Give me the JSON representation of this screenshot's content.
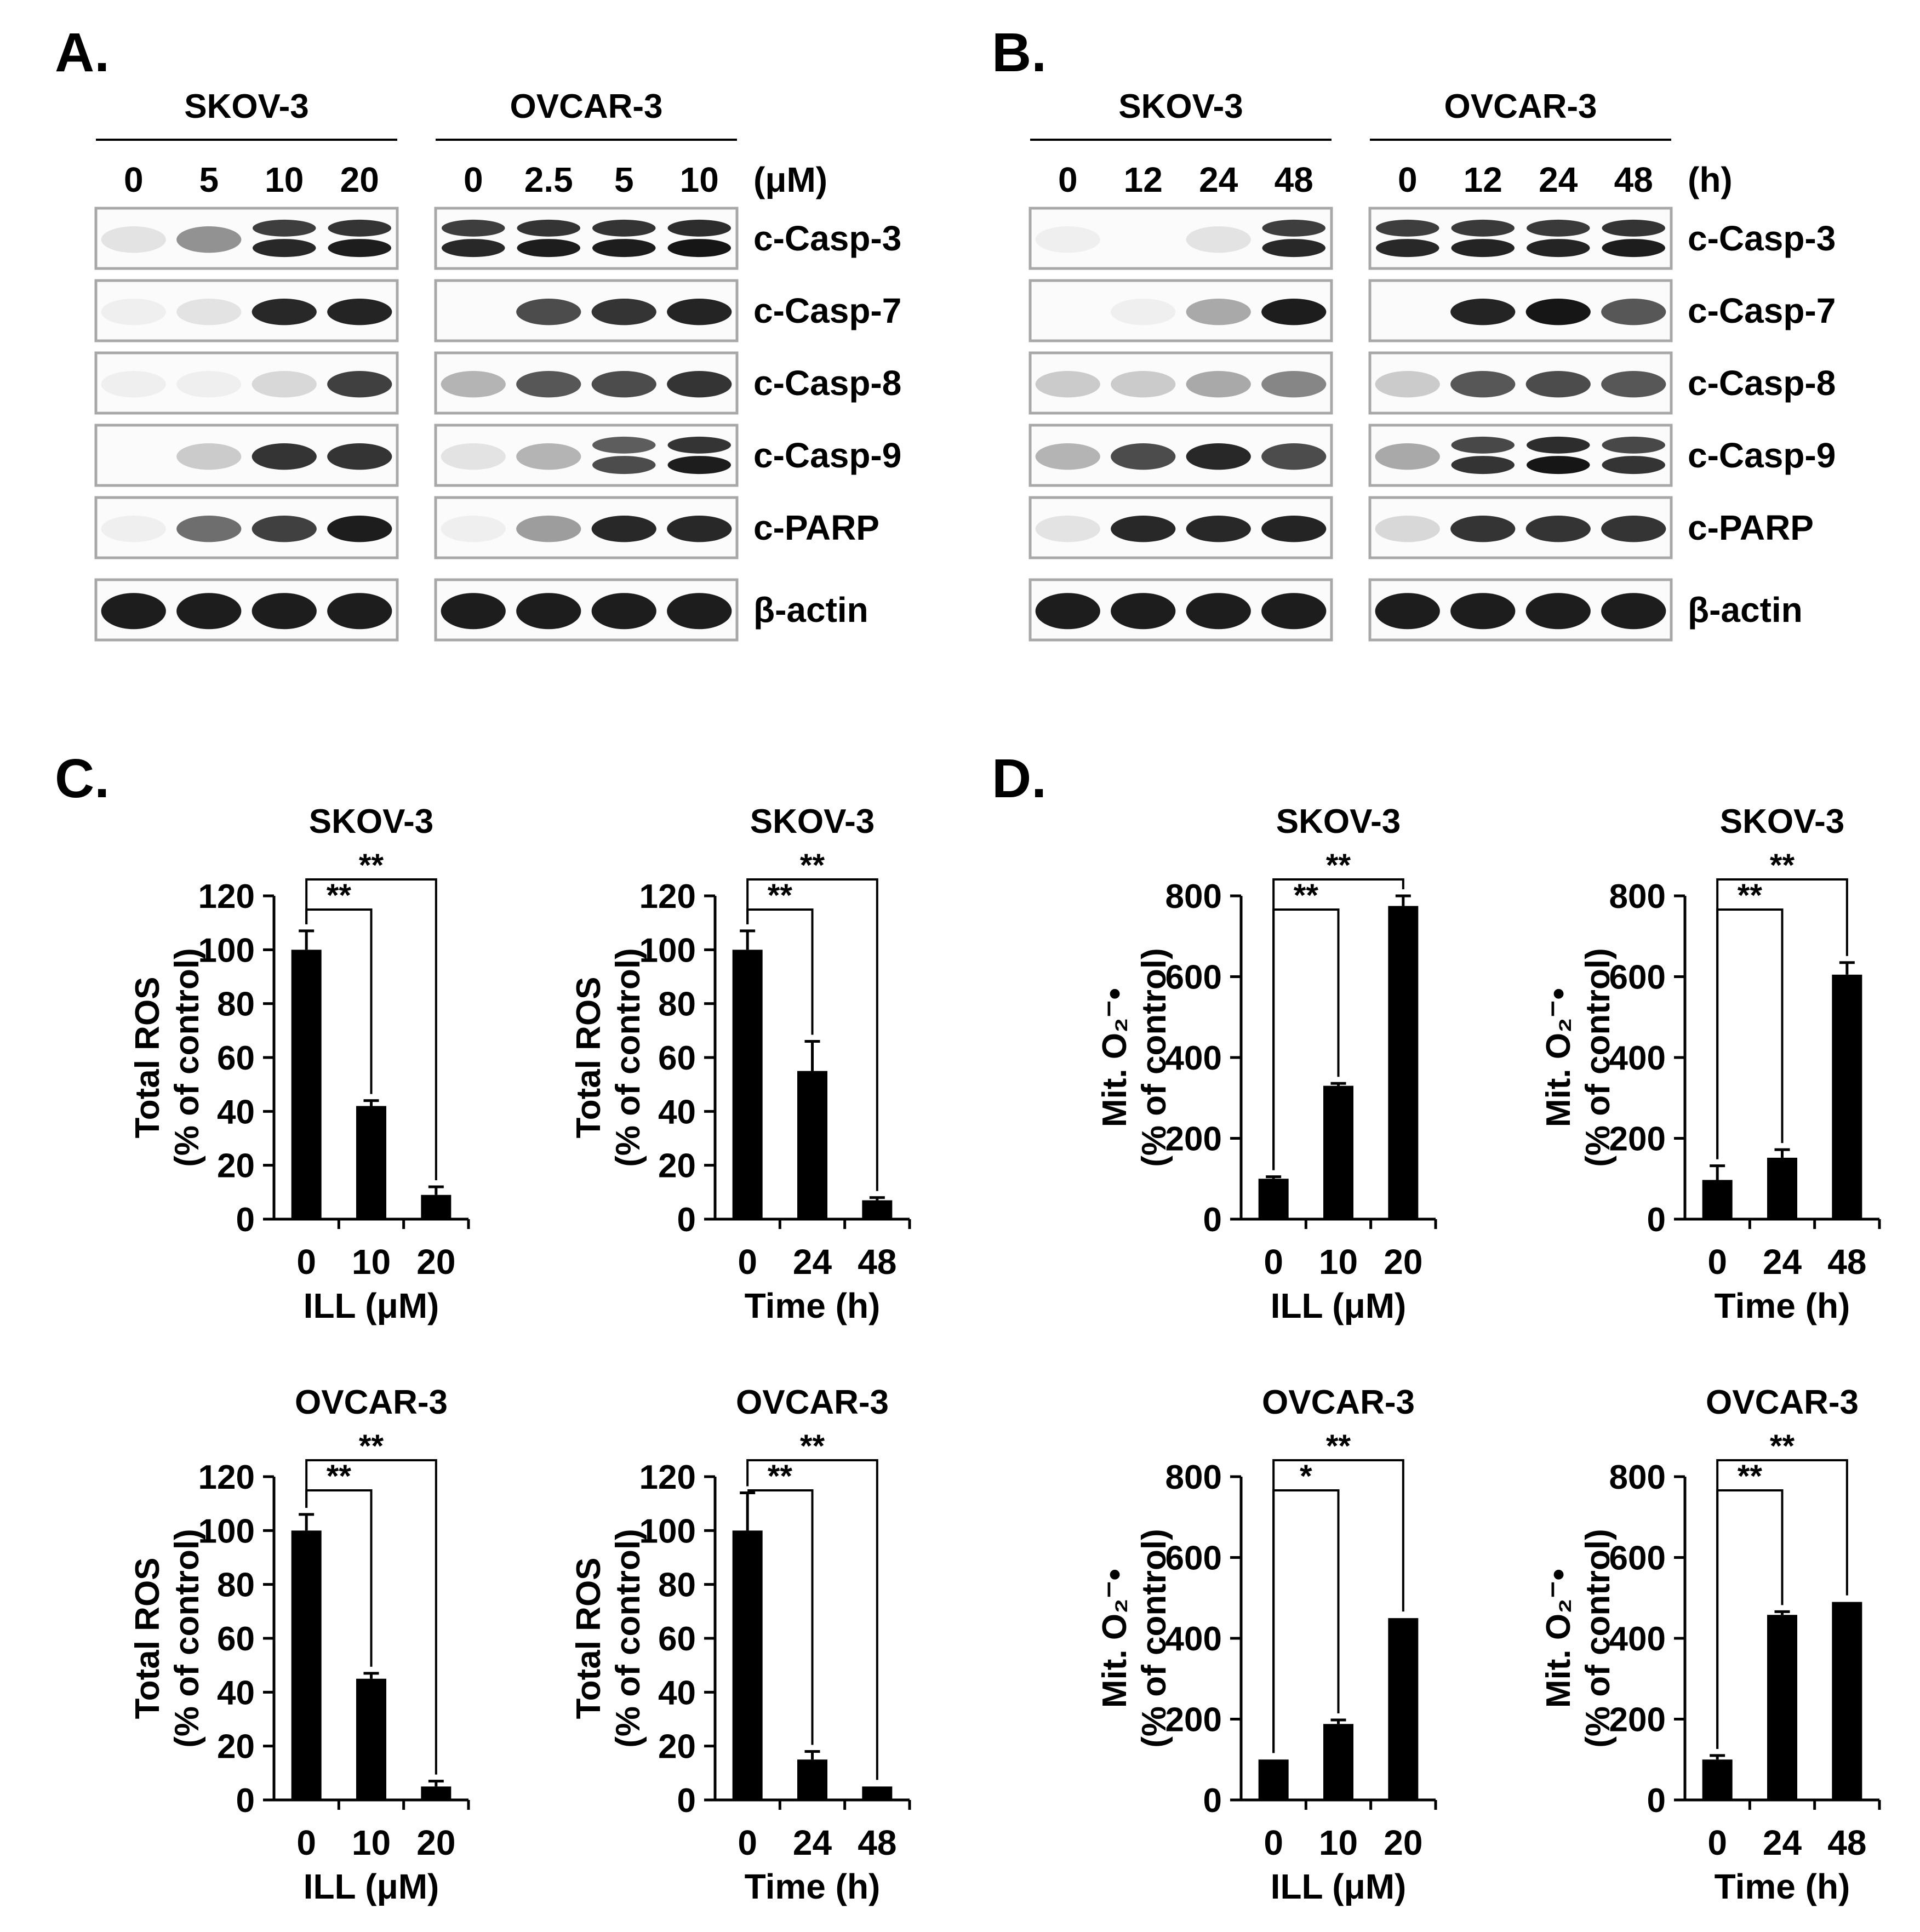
{
  "panels": {
    "A": "A.",
    "B": "B.",
    "C": "C.",
    "D": "D."
  },
  "blots": [
    {
      "panel": "A",
      "unit": "(μM)",
      "groups": [
        {
          "name": "SKOV-3",
          "lanes": [
            "0",
            "5",
            "10",
            "20"
          ]
        },
        {
          "name": "OVCAR-3",
          "lanes": [
            "0",
            "2.5",
            "5",
            "10"
          ]
        }
      ],
      "rows": [
        "c-Casp-3",
        "c-Casp-7",
        "c-Casp-8",
        "c-Casp-9",
        "c-PARP",
        "β-actin"
      ]
    },
    {
      "panel": "B",
      "unit": "(h)",
      "groups": [
        {
          "name": "SKOV-3",
          "lanes": [
            "0",
            "12",
            "24",
            "48"
          ]
        },
        {
          "name": "OVCAR-3",
          "lanes": [
            "0",
            "12",
            "24",
            "48"
          ]
        }
      ],
      "rows": [
        "c-Casp-3",
        "c-Casp-7",
        "c-Casp-8",
        "c-Casp-9",
        "c-PARP",
        "β-actin"
      ]
    }
  ],
  "chart_data": [
    {
      "panel": "C",
      "type": "bar",
      "title": "SKOV-3",
      "ylabel": [
        "Total ROS",
        "(% of control)"
      ],
      "xlabel": "ILL (μM)",
      "categories": [
        "0",
        "10",
        "20"
      ],
      "values": [
        100,
        42,
        9
      ],
      "errors": [
        7,
        2,
        3
      ],
      "ylim": [
        0,
        120
      ],
      "yticks": [
        0,
        20,
        40,
        60,
        80,
        100,
        120
      ],
      "significance": [
        {
          "from": 0,
          "to": 1,
          "label": "**"
        },
        {
          "from": 0,
          "to": 2,
          "label": "**"
        }
      ]
    },
    {
      "panel": "C",
      "type": "bar",
      "title": "SKOV-3",
      "ylabel": [
        "Total ROS",
        "(% of control)"
      ],
      "xlabel": "Time (h)",
      "categories": [
        "0",
        "24",
        "48"
      ],
      "values": [
        100,
        55,
        7
      ],
      "errors": [
        7,
        11,
        1
      ],
      "ylim": [
        0,
        120
      ],
      "yticks": [
        0,
        20,
        40,
        60,
        80,
        100,
        120
      ],
      "significance": [
        {
          "from": 0,
          "to": 1,
          "label": "**"
        },
        {
          "from": 0,
          "to": 2,
          "label": "**"
        }
      ]
    },
    {
      "panel": "D",
      "type": "bar",
      "title": "SKOV-3",
      "ylabel": [
        "Mit. O₂⁻•",
        "(% of control)"
      ],
      "xlabel": "ILL (μM)",
      "categories": [
        "0",
        "10",
        "20"
      ],
      "values": [
        100,
        330,
        775
      ],
      "errors": [
        5,
        6,
        25
      ],
      "ylim": [
        0,
        800
      ],
      "yticks": [
        0,
        200,
        400,
        600,
        800
      ],
      "significance": [
        {
          "from": 0,
          "to": 1,
          "label": "**"
        },
        {
          "from": 0,
          "to": 2,
          "label": "**"
        }
      ]
    },
    {
      "panel": "D",
      "type": "bar",
      "title": "SKOV-3",
      "ylabel": [
        "Mit. O₂⁻•",
        "(% of control)"
      ],
      "xlabel": "Time (h)",
      "categories": [
        "0",
        "24",
        "48"
      ],
      "values": [
        97,
        152,
        605
      ],
      "errors": [
        35,
        20,
        30
      ],
      "ylim": [
        0,
        800
      ],
      "yticks": [
        0,
        200,
        400,
        600,
        800
      ],
      "significance": [
        {
          "from": 0,
          "to": 1,
          "label": "**"
        },
        {
          "from": 0,
          "to": 2,
          "label": "**"
        }
      ]
    },
    {
      "panel": "C",
      "type": "bar",
      "title": "OVCAR-3",
      "ylabel": [
        "Total ROS",
        "(% of control)"
      ],
      "xlabel": "ILL (μM)",
      "categories": [
        "0",
        "10",
        "20"
      ],
      "values": [
        100,
        45,
        5
      ],
      "errors": [
        6,
        2,
        2
      ],
      "ylim": [
        0,
        120
      ],
      "yticks": [
        0,
        20,
        40,
        60,
        80,
        100,
        120
      ],
      "significance": [
        {
          "from": 0,
          "to": 1,
          "label": "**"
        },
        {
          "from": 0,
          "to": 2,
          "label": "**"
        }
      ]
    },
    {
      "panel": "C",
      "type": "bar",
      "title": "OVCAR-3",
      "ylabel": [
        "Total ROS",
        "(% of control)"
      ],
      "xlabel": "Time (h)",
      "categories": [
        "0",
        "24",
        "48"
      ],
      "values": [
        100,
        15,
        5
      ],
      "errors": [
        14,
        3,
        0
      ],
      "ylim": [
        0,
        120
      ],
      "yticks": [
        0,
        20,
        40,
        60,
        80,
        100,
        120
      ],
      "significance": [
        {
          "from": 0,
          "to": 1,
          "label": "**"
        },
        {
          "from": 0,
          "to": 2,
          "label": "**"
        }
      ]
    },
    {
      "panel": "D",
      "type": "bar",
      "title": "OVCAR-3",
      "ylabel": [
        "Mit. O₂⁻•",
        "(% of control)"
      ],
      "xlabel": "ILL (μM)",
      "categories": [
        "0",
        "10",
        "20"
      ],
      "values": [
        100,
        188,
        450
      ],
      "errors": [
        0,
        10,
        0
      ],
      "ylim": [
        0,
        800
      ],
      "yticks": [
        0,
        200,
        400,
        600,
        800
      ],
      "significance": [
        {
          "from": 0,
          "to": 1,
          "label": "*"
        },
        {
          "from": 0,
          "to": 2,
          "label": "**"
        }
      ]
    },
    {
      "panel": "D",
      "type": "bar",
      "title": "OVCAR-3",
      "ylabel": [
        "Mit. O₂⁻•",
        "(% of control)"
      ],
      "xlabel": "Time (h)",
      "categories": [
        "0",
        "24",
        "48"
      ],
      "values": [
        100,
        458,
        490
      ],
      "errors": [
        10,
        8,
        0
      ],
      "ylim": [
        0,
        800
      ],
      "yticks": [
        0,
        200,
        400,
        600,
        800
      ],
      "significance": [
        {
          "from": 0,
          "to": 1,
          "label": "**"
        },
        {
          "from": 0,
          "to": 2,
          "label": "**"
        }
      ]
    }
  ]
}
